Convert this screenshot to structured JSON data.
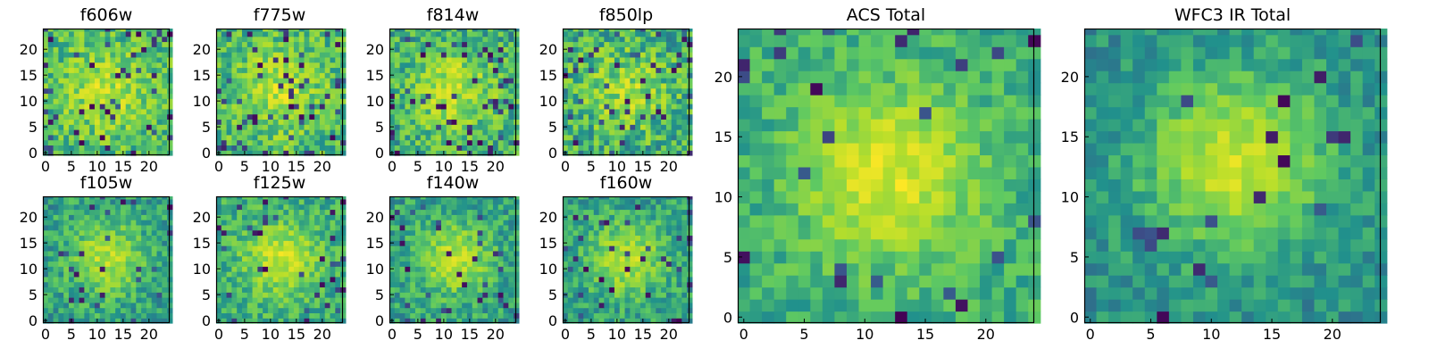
{
  "figure": {
    "colormap": {
      "name": "viridis-like",
      "stops": [
        "#440154",
        "#3b528b",
        "#21918c",
        "#5ec962",
        "#b5de2b",
        "#fde725"
      ]
    },
    "axis_tick_color": "#000000",
    "frame_color": "#000000"
  },
  "chart_data": [
    {
      "type": "heatmap",
      "title": "f606w",
      "size": [
        24,
        24
      ],
      "xlim": [
        0,
        24
      ],
      "ylim": [
        0,
        24
      ],
      "xticks": [
        0,
        5,
        10,
        15,
        20
      ],
      "yticks": [
        0,
        5,
        10,
        15,
        20
      ],
      "pattern": "noisy stamp, faint central source near (12,12)",
      "seed": 11,
      "center": [
        12,
        12
      ],
      "peak": 0.25,
      "width": 6,
      "base": 0.55,
      "noise": 0.4,
      "dark_rate": 0.08
    },
    {
      "type": "heatmap",
      "title": "f775w",
      "size": [
        24,
        24
      ],
      "xlim": [
        0,
        24
      ],
      "ylim": [
        0,
        24
      ],
      "xticks": [
        0,
        5,
        10,
        15,
        20
      ],
      "yticks": [
        0,
        5,
        10,
        15,
        20
      ],
      "pattern": "noisy stamp, faint central source near (12,12)",
      "seed": 23,
      "center": [
        12,
        12
      ],
      "peak": 0.25,
      "width": 6,
      "base": 0.55,
      "noise": 0.4,
      "dark_rate": 0.08
    },
    {
      "type": "heatmap",
      "title": "f814w",
      "size": [
        24,
        24
      ],
      "xlim": [
        0,
        24
      ],
      "ylim": [
        0,
        24
      ],
      "xticks": [
        0,
        5,
        10,
        15,
        20
      ],
      "yticks": [
        0,
        5,
        10,
        15,
        20
      ],
      "pattern": "noisy stamp, faint central source near (12,12)",
      "seed": 37,
      "center": [
        12,
        12
      ],
      "peak": 0.3,
      "width": 6,
      "base": 0.5,
      "noise": 0.4,
      "dark_rate": 0.08
    },
    {
      "type": "heatmap",
      "title": "f850lp",
      "size": [
        24,
        24
      ],
      "xlim": [
        0,
        24
      ],
      "ylim": [
        0,
        24
      ],
      "xticks": [
        0,
        5,
        10,
        15,
        20
      ],
      "yticks": [
        0,
        5,
        10,
        15,
        20
      ],
      "pattern": "noisy stamp, faint central source near (12,12)",
      "seed": 41,
      "center": [
        12,
        12
      ],
      "peak": 0.25,
      "width": 6,
      "base": 0.5,
      "noise": 0.45,
      "dark_rate": 0.09
    },
    {
      "type": "heatmap",
      "title": "f105w",
      "size": [
        24,
        24
      ],
      "xlim": [
        0,
        24
      ],
      "ylim": [
        0,
        24
      ],
      "xticks": [
        0,
        5,
        10,
        15,
        20
      ],
      "yticks": [
        0,
        5,
        10,
        15,
        20
      ],
      "pattern": "smoother stamp, central source near (12,12)",
      "seed": 53,
      "center": [
        12,
        12
      ],
      "peak": 0.35,
      "width": 5,
      "base": 0.45,
      "noise": 0.3,
      "dark_rate": 0.05
    },
    {
      "type": "heatmap",
      "title": "f125w",
      "size": [
        24,
        24
      ],
      "xlim": [
        0,
        24
      ],
      "ylim": [
        0,
        24
      ],
      "xticks": [
        0,
        5,
        10,
        15,
        20
      ],
      "yticks": [
        0,
        5,
        10,
        15,
        20
      ],
      "pattern": "smoother stamp, central source near (12,12)",
      "seed": 67,
      "center": [
        12,
        12
      ],
      "peak": 0.35,
      "width": 5,
      "base": 0.5,
      "noise": 0.3,
      "dark_rate": 0.05
    },
    {
      "type": "heatmap",
      "title": "f140w",
      "size": [
        24,
        24
      ],
      "xlim": [
        0,
        24
      ],
      "ylim": [
        0,
        24
      ],
      "xticks": [
        0,
        5,
        10,
        15,
        20
      ],
      "yticks": [
        0,
        5,
        10,
        15,
        20
      ],
      "pattern": "smoother stamp, central source near (12,12)",
      "seed": 79,
      "center": [
        12,
        12
      ],
      "peak": 0.35,
      "width": 5,
      "base": 0.45,
      "noise": 0.3,
      "dark_rate": 0.06
    },
    {
      "type": "heatmap",
      "title": "f160w",
      "size": [
        24,
        24
      ],
      "xlim": [
        0,
        24
      ],
      "ylim": [
        0,
        24
      ],
      "xticks": [
        0,
        5,
        10,
        15,
        20
      ],
      "yticks": [
        0,
        5,
        10,
        15,
        20
      ],
      "pattern": "smoother stamp, central source near (12,12)",
      "seed": 83,
      "center": [
        12,
        12
      ],
      "peak": 0.35,
      "width": 5,
      "base": 0.45,
      "noise": 0.3,
      "dark_rate": 0.06
    },
    {
      "type": "heatmap",
      "title": "ACS Total",
      "size": [
        24,
        24
      ],
      "xlim": [
        0,
        24
      ],
      "ylim": [
        0,
        24
      ],
      "xticks": [
        0,
        5,
        10,
        15,
        20
      ],
      "yticks": [
        0,
        5,
        10,
        15,
        20
      ],
      "pattern": "stacked ACS stamp, bright center near (12,12)",
      "seed": 97,
      "center": [
        12,
        12
      ],
      "peak": 0.4,
      "width": 5,
      "base": 0.5,
      "noise": 0.25,
      "dark_rate": 0.04
    },
    {
      "type": "heatmap",
      "title": "WFC3 IR Total",
      "size": [
        24,
        24
      ],
      "xlim": [
        0,
        24
      ],
      "ylim": [
        0,
        24
      ],
      "xticks": [
        0,
        5,
        10,
        15,
        20
      ],
      "yticks": [
        0,
        5,
        10,
        15,
        20
      ],
      "pattern": "stacked IR stamp, bright center near (12,13)",
      "seed": 101,
      "center": [
        12,
        13
      ],
      "peak": 0.45,
      "width": 5,
      "base": 0.4,
      "noise": 0.22,
      "dark_rate": 0.03
    }
  ]
}
